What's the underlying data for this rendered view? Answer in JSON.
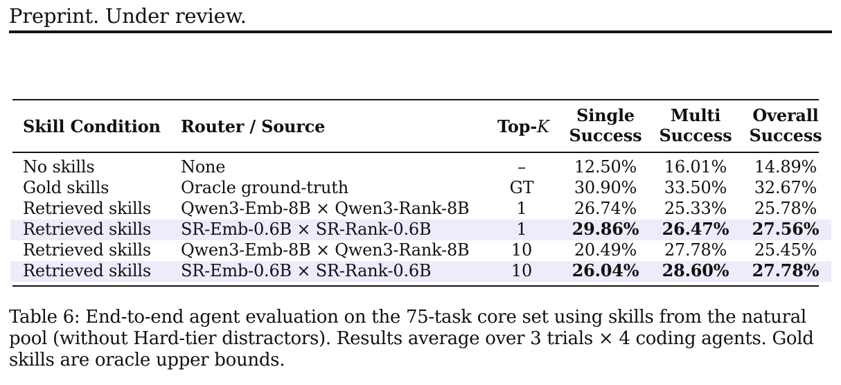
{
  "page_header": "Preprint. Under review.",
  "table": {
    "headers": {
      "skill_condition": "Skill Condition",
      "router_source": "Router / Source",
      "top_k_prefix": "Top-",
      "top_k_var": "K",
      "single_1": "Single",
      "single_2": "Success",
      "multi_1": "Multi",
      "multi_2": "Success",
      "overall_1": "Overall",
      "overall_2": "Success"
    },
    "rows": [
      {
        "condition": "No skills",
        "router": "None",
        "topk": "–",
        "single": "12.50%",
        "multi": "16.01%",
        "overall": "14.89%",
        "highlight": false,
        "bold": false
      },
      {
        "condition": "Gold skills",
        "router": "Oracle ground-truth",
        "topk": "GT",
        "single": "30.90%",
        "multi": "33.50%",
        "overall": "32.67%",
        "highlight": false,
        "bold": false
      },
      {
        "condition": "Retrieved skills",
        "router": "Qwen3-Emb-8B × Qwen3-Rank-8B",
        "topk": "1",
        "single": "26.74%",
        "multi": "25.33%",
        "overall": "25.78%",
        "highlight": false,
        "bold": false
      },
      {
        "condition": "Retrieved skills",
        "router": "SR-Emb-0.6B × SR-Rank-0.6B",
        "topk": "1",
        "single": "29.86%",
        "multi": "26.47%",
        "overall": "27.56%",
        "highlight": true,
        "bold": true
      },
      {
        "condition": "Retrieved skills",
        "router": "Qwen3-Emb-8B × Qwen3-Rank-8B",
        "topk": "10",
        "single": "20.49%",
        "multi": "27.78%",
        "overall": "25.45%",
        "highlight": false,
        "bold": false
      },
      {
        "condition": "Retrieved skills",
        "router": "SR-Emb-0.6B × SR-Rank-0.6B",
        "topk": "10",
        "single": "26.04%",
        "multi": "28.60%",
        "overall": "27.78%",
        "highlight": true,
        "bold": true
      }
    ],
    "highlight_color": "#ececfb"
  },
  "caption": {
    "line1": "Table 6: End-to-end agent evaluation on the 75-task core set using skills from the natural",
    "line2": "pool (without Hard-tier distractors). Results average over 3 trials × 4 coding agents. Gold",
    "line3": "skills are oracle upper bounds."
  }
}
